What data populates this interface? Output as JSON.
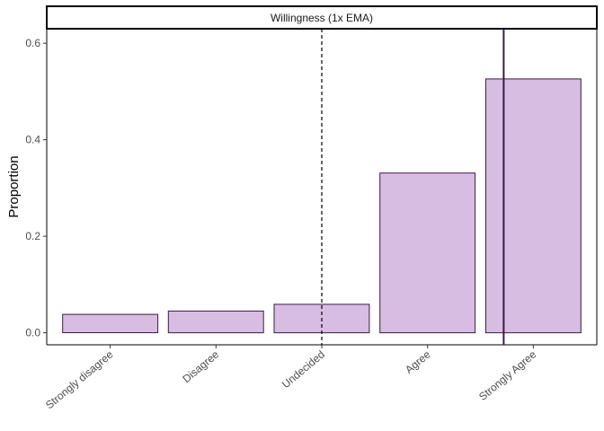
{
  "chart_data": {
    "type": "bar",
    "facet_title": "Willingness (1x EMA)",
    "categories": [
      "Strongly disagree",
      "Disagree",
      "Undecided",
      "Agree",
      "Strongly Agree"
    ],
    "values": [
      0.038,
      0.045,
      0.059,
      0.331,
      0.526
    ],
    "xlabel": "",
    "ylabel": "Proportion",
    "ylim": [
      -0.025,
      0.63
    ],
    "yticks": [
      0.0,
      0.2,
      0.4,
      0.6
    ],
    "ytick_labels": [
      "0.0",
      "0.2",
      "0.4",
      "0.6"
    ],
    "reference_lines": [
      {
        "style": "dashed",
        "x_category_position": 3,
        "color": "#000000"
      },
      {
        "style": "solid",
        "x_category_position": 4.72,
        "color": "#3b1a47"
      }
    ],
    "grid": false,
    "legend": "none",
    "colors": {
      "bar_fill": "#d8bde3",
      "bar_stroke": "#3b1a47"
    }
  }
}
